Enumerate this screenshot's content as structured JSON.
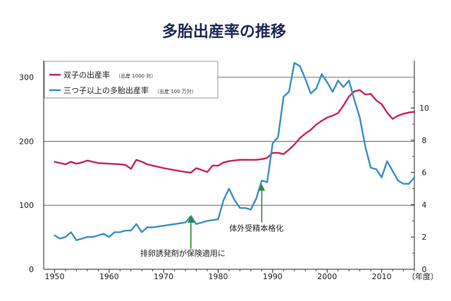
{
  "chart_data": {
    "type": "line",
    "title": "多胎出産率の推移",
    "x_unit_label": "（年度）",
    "x": {
      "range": [
        1948,
        2016
      ],
      "ticks": [
        1950,
        1960,
        1970,
        1980,
        1990,
        2000,
        2010
      ]
    },
    "y_left": {
      "range": [
        0,
        315
      ],
      "ticks": [
        0,
        100,
        200,
        300
      ]
    },
    "y_right": {
      "range": [
        0,
        12.5
      ],
      "ticks": [
        0,
        2,
        4,
        6,
        8,
        10
      ]
    },
    "grid": {
      "horizontal_lines_at_left_values": [
        100,
        200,
        300
      ]
    },
    "legend_position": "top-left",
    "series": [
      {
        "name": "双子の出産率",
        "unit": "（出産 1000 対）",
        "axis": "left",
        "color": "#c8245a",
        "points": [
          [
            1950,
            168
          ],
          [
            1951,
            166
          ],
          [
            1952,
            164
          ],
          [
            1953,
            168
          ],
          [
            1954,
            165
          ],
          [
            1955,
            167
          ],
          [
            1956,
            170
          ],
          [
            1957,
            168
          ],
          [
            1958,
            166
          ],
          [
            1960,
            165
          ],
          [
            1962,
            164
          ],
          [
            1963,
            163
          ],
          [
            1964,
            157
          ],
          [
            1965,
            171
          ],
          [
            1966,
            168
          ],
          [
            1967,
            164
          ],
          [
            1968,
            162
          ],
          [
            1970,
            158
          ],
          [
            1972,
            155
          ],
          [
            1974,
            152
          ],
          [
            1975,
            151
          ],
          [
            1976,
            158
          ],
          [
            1977,
            155
          ],
          [
            1978,
            152
          ],
          [
            1979,
            162
          ],
          [
            1980,
            162
          ],
          [
            1981,
            167
          ],
          [
            1982,
            169
          ],
          [
            1984,
            171
          ],
          [
            1986,
            171
          ],
          [
            1987,
            171
          ],
          [
            1988,
            172
          ],
          [
            1989,
            174
          ],
          [
            1990,
            182
          ],
          [
            1991,
            182
          ],
          [
            1992,
            180
          ],
          [
            1993,
            187
          ],
          [
            1994,
            195
          ],
          [
            1995,
            205
          ],
          [
            1996,
            212
          ],
          [
            1997,
            218
          ],
          [
            1998,
            226
          ],
          [
            1999,
            232
          ],
          [
            2000,
            237
          ],
          [
            2001,
            240
          ],
          [
            2002,
            244
          ],
          [
            2003,
            256
          ],
          [
            2004,
            270
          ],
          [
            2005,
            278
          ],
          [
            2006,
            280
          ],
          [
            2007,
            273
          ],
          [
            2008,
            274
          ],
          [
            2009,
            264
          ],
          [
            2010,
            258
          ],
          [
            2011,
            245
          ],
          [
            2012,
            235
          ],
          [
            2013,
            240
          ],
          [
            2014,
            243
          ],
          [
            2015,
            245
          ],
          [
            2016,
            246
          ]
        ]
      },
      {
        "name": "三つ子以上の多胎出産率",
        "unit": "（出産 100 万対）",
        "axis": "right",
        "color": "#3b8fc4",
        "points": [
          [
            1950,
            2.1
          ],
          [
            1951,
            1.9
          ],
          [
            1952,
            2.0
          ],
          [
            1953,
            2.3
          ],
          [
            1954,
            1.8
          ],
          [
            1955,
            1.9
          ],
          [
            1956,
            2.0
          ],
          [
            1957,
            2.0
          ],
          [
            1958,
            2.1
          ],
          [
            1959,
            2.2
          ],
          [
            1960,
            2.0
          ],
          [
            1961,
            2.3
          ],
          [
            1962,
            2.3
          ],
          [
            1963,
            2.4
          ],
          [
            1964,
            2.4
          ],
          [
            1965,
            2.8
          ],
          [
            1966,
            2.3
          ],
          [
            1967,
            2.6
          ],
          [
            1968,
            2.6
          ],
          [
            1970,
            2.7
          ],
          [
            1972,
            2.8
          ],
          [
            1974,
            2.9
          ],
          [
            1975,
            3.3
          ],
          [
            1976,
            2.8
          ],
          [
            1977,
            2.9
          ],
          [
            1978,
            3.0
          ],
          [
            1980,
            3.1
          ],
          [
            1981,
            4.3
          ],
          [
            1982,
            5.0
          ],
          [
            1983,
            4.3
          ],
          [
            1984,
            3.8
          ],
          [
            1985,
            3.8
          ],
          [
            1986,
            3.7
          ],
          [
            1987,
            4.4
          ],
          [
            1988,
            5.5
          ],
          [
            1989,
            5.4
          ],
          [
            1990,
            7.8
          ],
          [
            1991,
            8.2
          ],
          [
            1992,
            10.7
          ],
          [
            1993,
            11.0
          ],
          [
            1994,
            12.8
          ],
          [
            1995,
            12.6
          ],
          [
            1996,
            11.8
          ],
          [
            1997,
            10.9
          ],
          [
            1998,
            11.2
          ],
          [
            1999,
            12.1
          ],
          [
            2000,
            11.6
          ],
          [
            2001,
            11.0
          ],
          [
            2002,
            11.7
          ],
          [
            2003,
            11.3
          ],
          [
            2004,
            11.7
          ],
          [
            2005,
            10.5
          ],
          [
            2006,
            9.4
          ],
          [
            2007,
            7.6
          ],
          [
            2008,
            6.3
          ],
          [
            2009,
            6.2
          ],
          [
            2010,
            5.7
          ],
          [
            2011,
            6.7
          ],
          [
            2012,
            6.1
          ],
          [
            2013,
            5.5
          ],
          [
            2014,
            5.3
          ],
          [
            2015,
            5.3
          ],
          [
            2016,
            5.7
          ]
        ]
      }
    ],
    "annotations": [
      {
        "text": "排卵誘発剤が保険適用に",
        "x": 1975,
        "arrow_from_left": 32,
        "arrow_to_left": 78
      },
      {
        "text": "体外受精本格化",
        "x": 1988,
        "arrow_from_left": 73,
        "arrow_to_left": 128
      }
    ]
  }
}
